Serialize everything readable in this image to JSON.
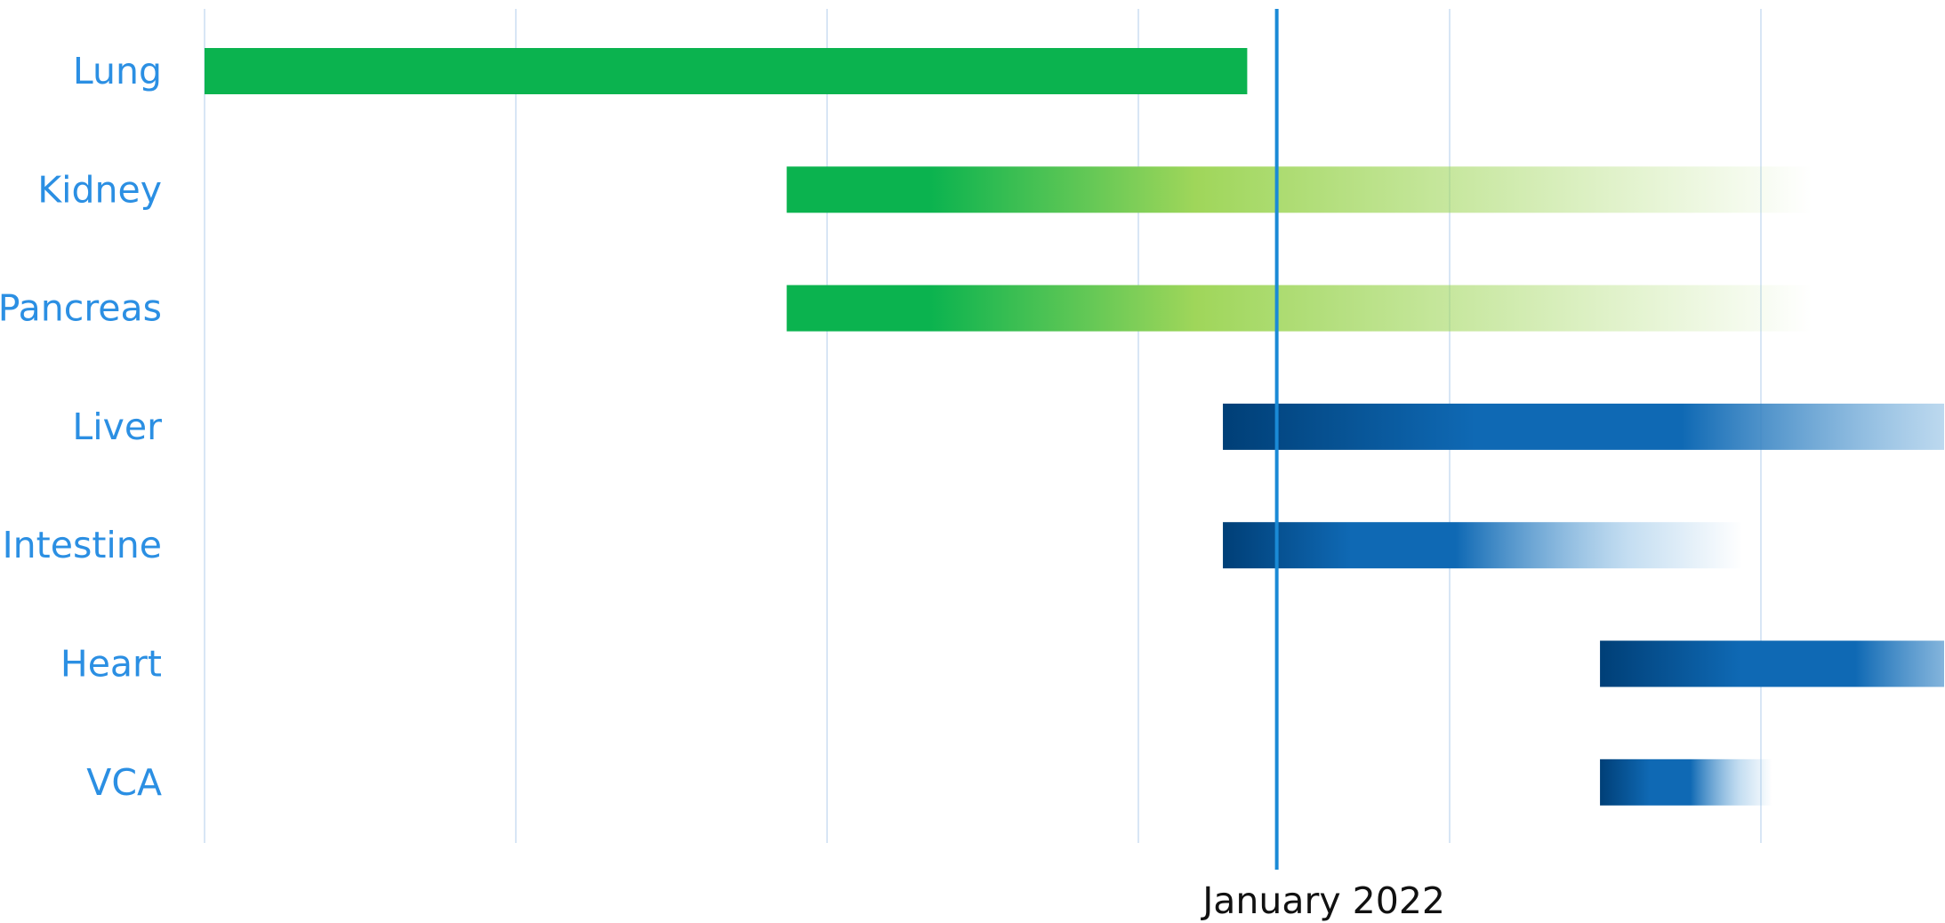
{
  "chart_data": {
    "type": "bar",
    "subtype": "timeline",
    "title": "",
    "xlabel": "",
    "ylabel": "",
    "grid": true,
    "legend": "none",
    "categories": [
      "Lung",
      "Kidney",
      "Pancreas",
      "Liver",
      "Intestine",
      "Heart",
      "VCA"
    ],
    "x_domain": [
      0,
      1
    ],
    "bars": [
      {
        "label": "Lung",
        "start": 0.0,
        "end": 0.6,
        "fade_start": 0.6,
        "scheme": "green"
      },
      {
        "label": "Kidney",
        "start": 0.335,
        "end": 0.925,
        "fade_start": 0.57,
        "scheme": "green"
      },
      {
        "label": "Pancreas",
        "start": 0.335,
        "end": 0.925,
        "fade_start": 0.57,
        "scheme": "green"
      },
      {
        "label": "Liver",
        "start": 0.586,
        "end": 1.117,
        "fade_start": 0.85,
        "scheme": "blue"
      },
      {
        "label": "Intestine",
        "start": 0.586,
        "end": 0.885,
        "fade_start": 0.72,
        "scheme": "blue"
      },
      {
        "label": "Heart",
        "start": 0.803,
        "end": 1.1,
        "fade_start": 0.95,
        "scheme": "blue"
      },
      {
        "label": "VCA",
        "start": 0.803,
        "end": 0.902,
        "fade_start": 0.855,
        "scheme": "blue"
      }
    ],
    "reference_line": {
      "x": 0.617,
      "label": "January 2022"
    }
  },
  "colors": {
    "label": "#2b8fe3",
    "grid": "#d8e6f5",
    "reference_line": "#1a8ad6",
    "green_dark": "#0bb34f",
    "green_light": "#9fd65a",
    "blue_dark": "#003f77",
    "blue_mid": "#0f69b4",
    "blue_light": "#9cc7e8"
  }
}
